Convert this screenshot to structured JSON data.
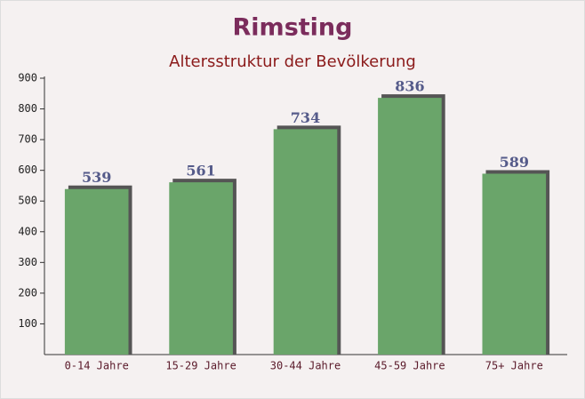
{
  "chart_data": {
    "type": "bar",
    "title": "Rimsting",
    "subtitle": "Altersstruktur der Bevölkerung",
    "categories": [
      "0-14 Jahre",
      "15-29 Jahre",
      "30-44 Jahre",
      "45-59 Jahre",
      "75+ Jahre"
    ],
    "values": [
      539,
      561,
      734,
      836,
      589
    ],
    "color": "#6aa56a",
    "ylim": [
      0,
      900
    ],
    "yticks": [
      100,
      200,
      300,
      400,
      500,
      600,
      700,
      800,
      900
    ]
  }
}
